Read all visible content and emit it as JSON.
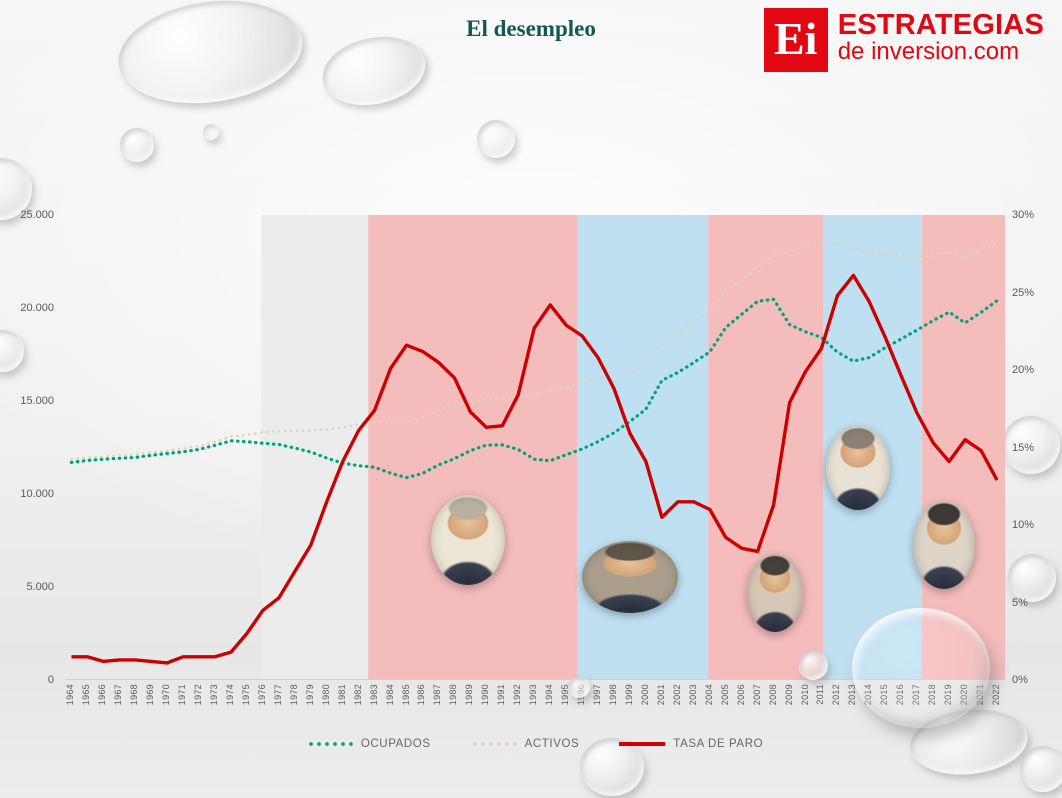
{
  "page": {
    "title": "El desempleo"
  },
  "logo": {
    "monogram": "Ei",
    "line1": "ESTRATEGIAS",
    "line2": "de inversion.com"
  },
  "chart_data": {
    "type": "line",
    "title": "El desempleo",
    "x": [
      1964,
      1965,
      1966,
      1967,
      1968,
      1969,
      1970,
      1971,
      1972,
      1973,
      1974,
      1975,
      1976,
      1977,
      1978,
      1979,
      1980,
      1981,
      1982,
      1983,
      1984,
      1985,
      1986,
      1987,
      1988,
      1989,
      1990,
      1991,
      1992,
      1993,
      1994,
      1995,
      1996,
      1997,
      1998,
      1999,
      2000,
      2001,
      2002,
      2003,
      2004,
      2005,
      2006,
      2007,
      2008,
      2009,
      2010,
      2011,
      2012,
      2013,
      2014,
      2015,
      2016,
      2017,
      2018,
      2019,
      2020,
      2021,
      2022
    ],
    "series": [
      {
        "name": "OCUPADOS",
        "axis": "left",
        "style": "dotted",
        "color": "#00a478",
        "width": 3.2,
        "values": [
          11700,
          11800,
          11870,
          11920,
          11960,
          12080,
          12180,
          12270,
          12400,
          12620,
          12860,
          12810,
          12730,
          12660,
          12470,
          12260,
          11930,
          11660,
          11520,
          11440,
          11120,
          10880,
          11110,
          11560,
          11900,
          12330,
          12630,
          12640,
          12390,
          11870,
          11790,
          12110,
          12420,
          12810,
          13290,
          13900,
          14560,
          16100,
          16530,
          17070,
          17640,
          18950,
          19660,
          20360,
          20470,
          19110,
          18720,
          18420,
          17630,
          17140,
          17340,
          17870,
          18340,
          18820,
          19330,
          19780,
          19200,
          19770,
          20390
        ]
      },
      {
        "name": "ACTIVOS",
        "axis": "left",
        "style": "dotted",
        "color": "#ddd5ba",
        "width": 2.4,
        "values": [
          11880,
          11970,
          12010,
          12080,
          12120,
          12230,
          12320,
          12450,
          12580,
          12800,
          13090,
          13160,
          13330,
          13370,
          13390,
          13410,
          13480,
          13580,
          13740,
          13850,
          13920,
          13890,
          14100,
          14540,
          14790,
          14910,
          15100,
          15120,
          15190,
          15370,
          15560,
          15710,
          15970,
          16170,
          16370,
          16530,
          16950,
          17990,
          18680,
          19290,
          19820,
          20890,
          21490,
          22190,
          22850,
          23040,
          23380,
          23440,
          23440,
          23190,
          22950,
          22920,
          22820,
          22740,
          22810,
          23030,
          22710,
          23200,
          23440
        ]
      },
      {
        "name": "TASA DE PARO",
        "axis": "right",
        "style": "solid",
        "color": "#cc0000",
        "width": 3.4,
        "values": [
          1.5,
          1.5,
          1.2,
          1.3,
          1.3,
          1.2,
          1.1,
          1.5,
          1.5,
          1.5,
          1.8,
          3.0,
          4.5,
          5.3,
          7.0,
          8.7,
          11.5,
          14.1,
          16.1,
          17.4,
          20.1,
          21.6,
          21.2,
          20.5,
          19.5,
          17.3,
          16.3,
          16.4,
          18.4,
          22.7,
          24.2,
          22.9,
          22.2,
          20.8,
          18.8,
          15.9,
          14.1,
          10.5,
          11.5,
          11.5,
          11.0,
          9.2,
          8.5,
          8.3,
          11.3,
          17.9,
          19.9,
          21.4,
          24.8,
          26.1,
          24.4,
          22.1,
          19.6,
          17.2,
          15.3,
          14.1,
          15.5,
          14.8,
          12.9
        ]
      }
    ],
    "left_axis": {
      "max": 25000,
      "tick_values": [
        0,
        5000,
        10000,
        15000,
        20000,
        25000
      ],
      "tick_labels": [
        "0",
        "5.000",
        "10.000",
        "15.000",
        "20.000",
        "25.000"
      ]
    },
    "right_axis": {
      "max": 30,
      "tick_values": [
        0,
        5,
        10,
        15,
        20,
        25,
        30
      ],
      "tick_labels": [
        "0%",
        "5%",
        "10%",
        "15%",
        "20%",
        "25%",
        "30%"
      ]
    },
    "bands": [
      {
        "from": 1975.9,
        "to": 1982.6,
        "color": "#ececec"
      },
      {
        "from": 1982.6,
        "to": 1995.7,
        "color": "#f5bcbc"
      },
      {
        "from": 1995.7,
        "to": 2003.9,
        "color": "#bfe0f1"
      },
      {
        "from": 2003.9,
        "to": 2011.1,
        "color": "#f5bcbc"
      },
      {
        "from": 2011.1,
        "to": 2017.3,
        "color": "#bfe0f1"
      },
      {
        "from": 2017.3,
        "to": 2022.5,
        "color": "#f5bcbc"
      }
    ],
    "legend_position": "bottom",
    "portraits": [
      {
        "person": "Felipe González"
      },
      {
        "person": "José María Aznar"
      },
      {
        "person": "José Luis Rodríguez Zapatero"
      },
      {
        "person": "Mariano Rajoy"
      },
      {
        "person": "Pedro Sánchez"
      }
    ]
  }
}
